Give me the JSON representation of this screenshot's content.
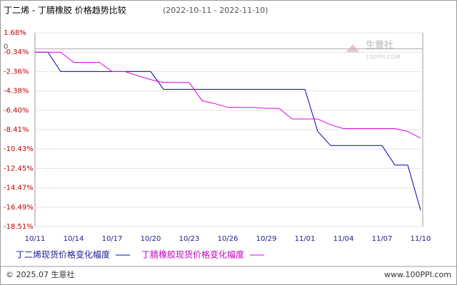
{
  "chart_data": {
    "type": "line",
    "title": "丁二烯 - 丁腈橡胶 价格趋势比较",
    "subtitle": "(2022-10-11 - 2022-11-10)",
    "categories": [
      "10/11",
      null,
      null,
      "10/14",
      null,
      null,
      "10/17",
      null,
      null,
      "10/20",
      null,
      null,
      "10/23",
      null,
      null,
      "10/26",
      null,
      null,
      "10/29",
      null,
      null,
      "11/01",
      null,
      null,
      "11/04",
      null,
      null,
      "11/07",
      null,
      null,
      "11/10"
    ],
    "series": [
      {
        "name": "丁二烯现货价格变化幅度",
        "color": "#0000c0",
        "values": [
          -0.34,
          -0.34,
          -2.36,
          -2.36,
          -2.36,
          -2.36,
          -2.36,
          -2.36,
          -2.36,
          -2.36,
          -4.21,
          -4.21,
          -4.21,
          -4.21,
          -4.21,
          -4.21,
          -4.21,
          -4.21,
          -4.21,
          -4.21,
          -4.21,
          -4.21,
          -8.6,
          -10.07,
          -10.07,
          -10.07,
          -10.07,
          -10.07,
          -12.1,
          -12.1,
          -16.8
        ]
      },
      {
        "name": "丁腈橡胶现货价格变化幅度",
        "color": "#e000e0",
        "values": [
          -0.34,
          -0.34,
          -0.34,
          -1.4,
          -1.4,
          -1.4,
          -2.36,
          -2.36,
          -2.8,
          -3.2,
          -3.5,
          -3.5,
          -3.5,
          -5.4,
          -5.7,
          -6.1,
          -6.1,
          -6.1,
          -6.2,
          -6.2,
          -7.3,
          -7.3,
          -7.3,
          -7.9,
          -8.3,
          -8.3,
          -8.3,
          -8.3,
          -8.3,
          -8.6,
          -9.3
        ]
      }
    ],
    "ylim": [
      -18.51,
      1.68
    ],
    "yticks": [
      {
        "value": 1.68,
        "label": "1.68%"
      },
      {
        "value": -0.34,
        "label": "-0.34%"
      },
      {
        "value": -2.36,
        "label": "-2.36%"
      },
      {
        "value": -4.38,
        "label": "-4.38%"
      },
      {
        "value": -6.4,
        "label": "-6.40%"
      },
      {
        "value": -8.41,
        "label": "-8.41%"
      },
      {
        "value": -10.43,
        "label": "-10.43%"
      },
      {
        "value": -12.45,
        "label": "-12.45%"
      },
      {
        "value": -14.47,
        "label": "-14.47%"
      },
      {
        "value": -16.49,
        "label": "-16.49%"
      },
      {
        "value": -18.51,
        "label": "-18.51%"
      }
    ],
    "zero_tick": 0,
    "grid": true,
    "watermark": {
      "name": "生意社",
      "site": "100PPI.COM"
    },
    "footer": {
      "copyright": "© 2025.07 生意社",
      "url": "www.100PPI.com"
    }
  }
}
